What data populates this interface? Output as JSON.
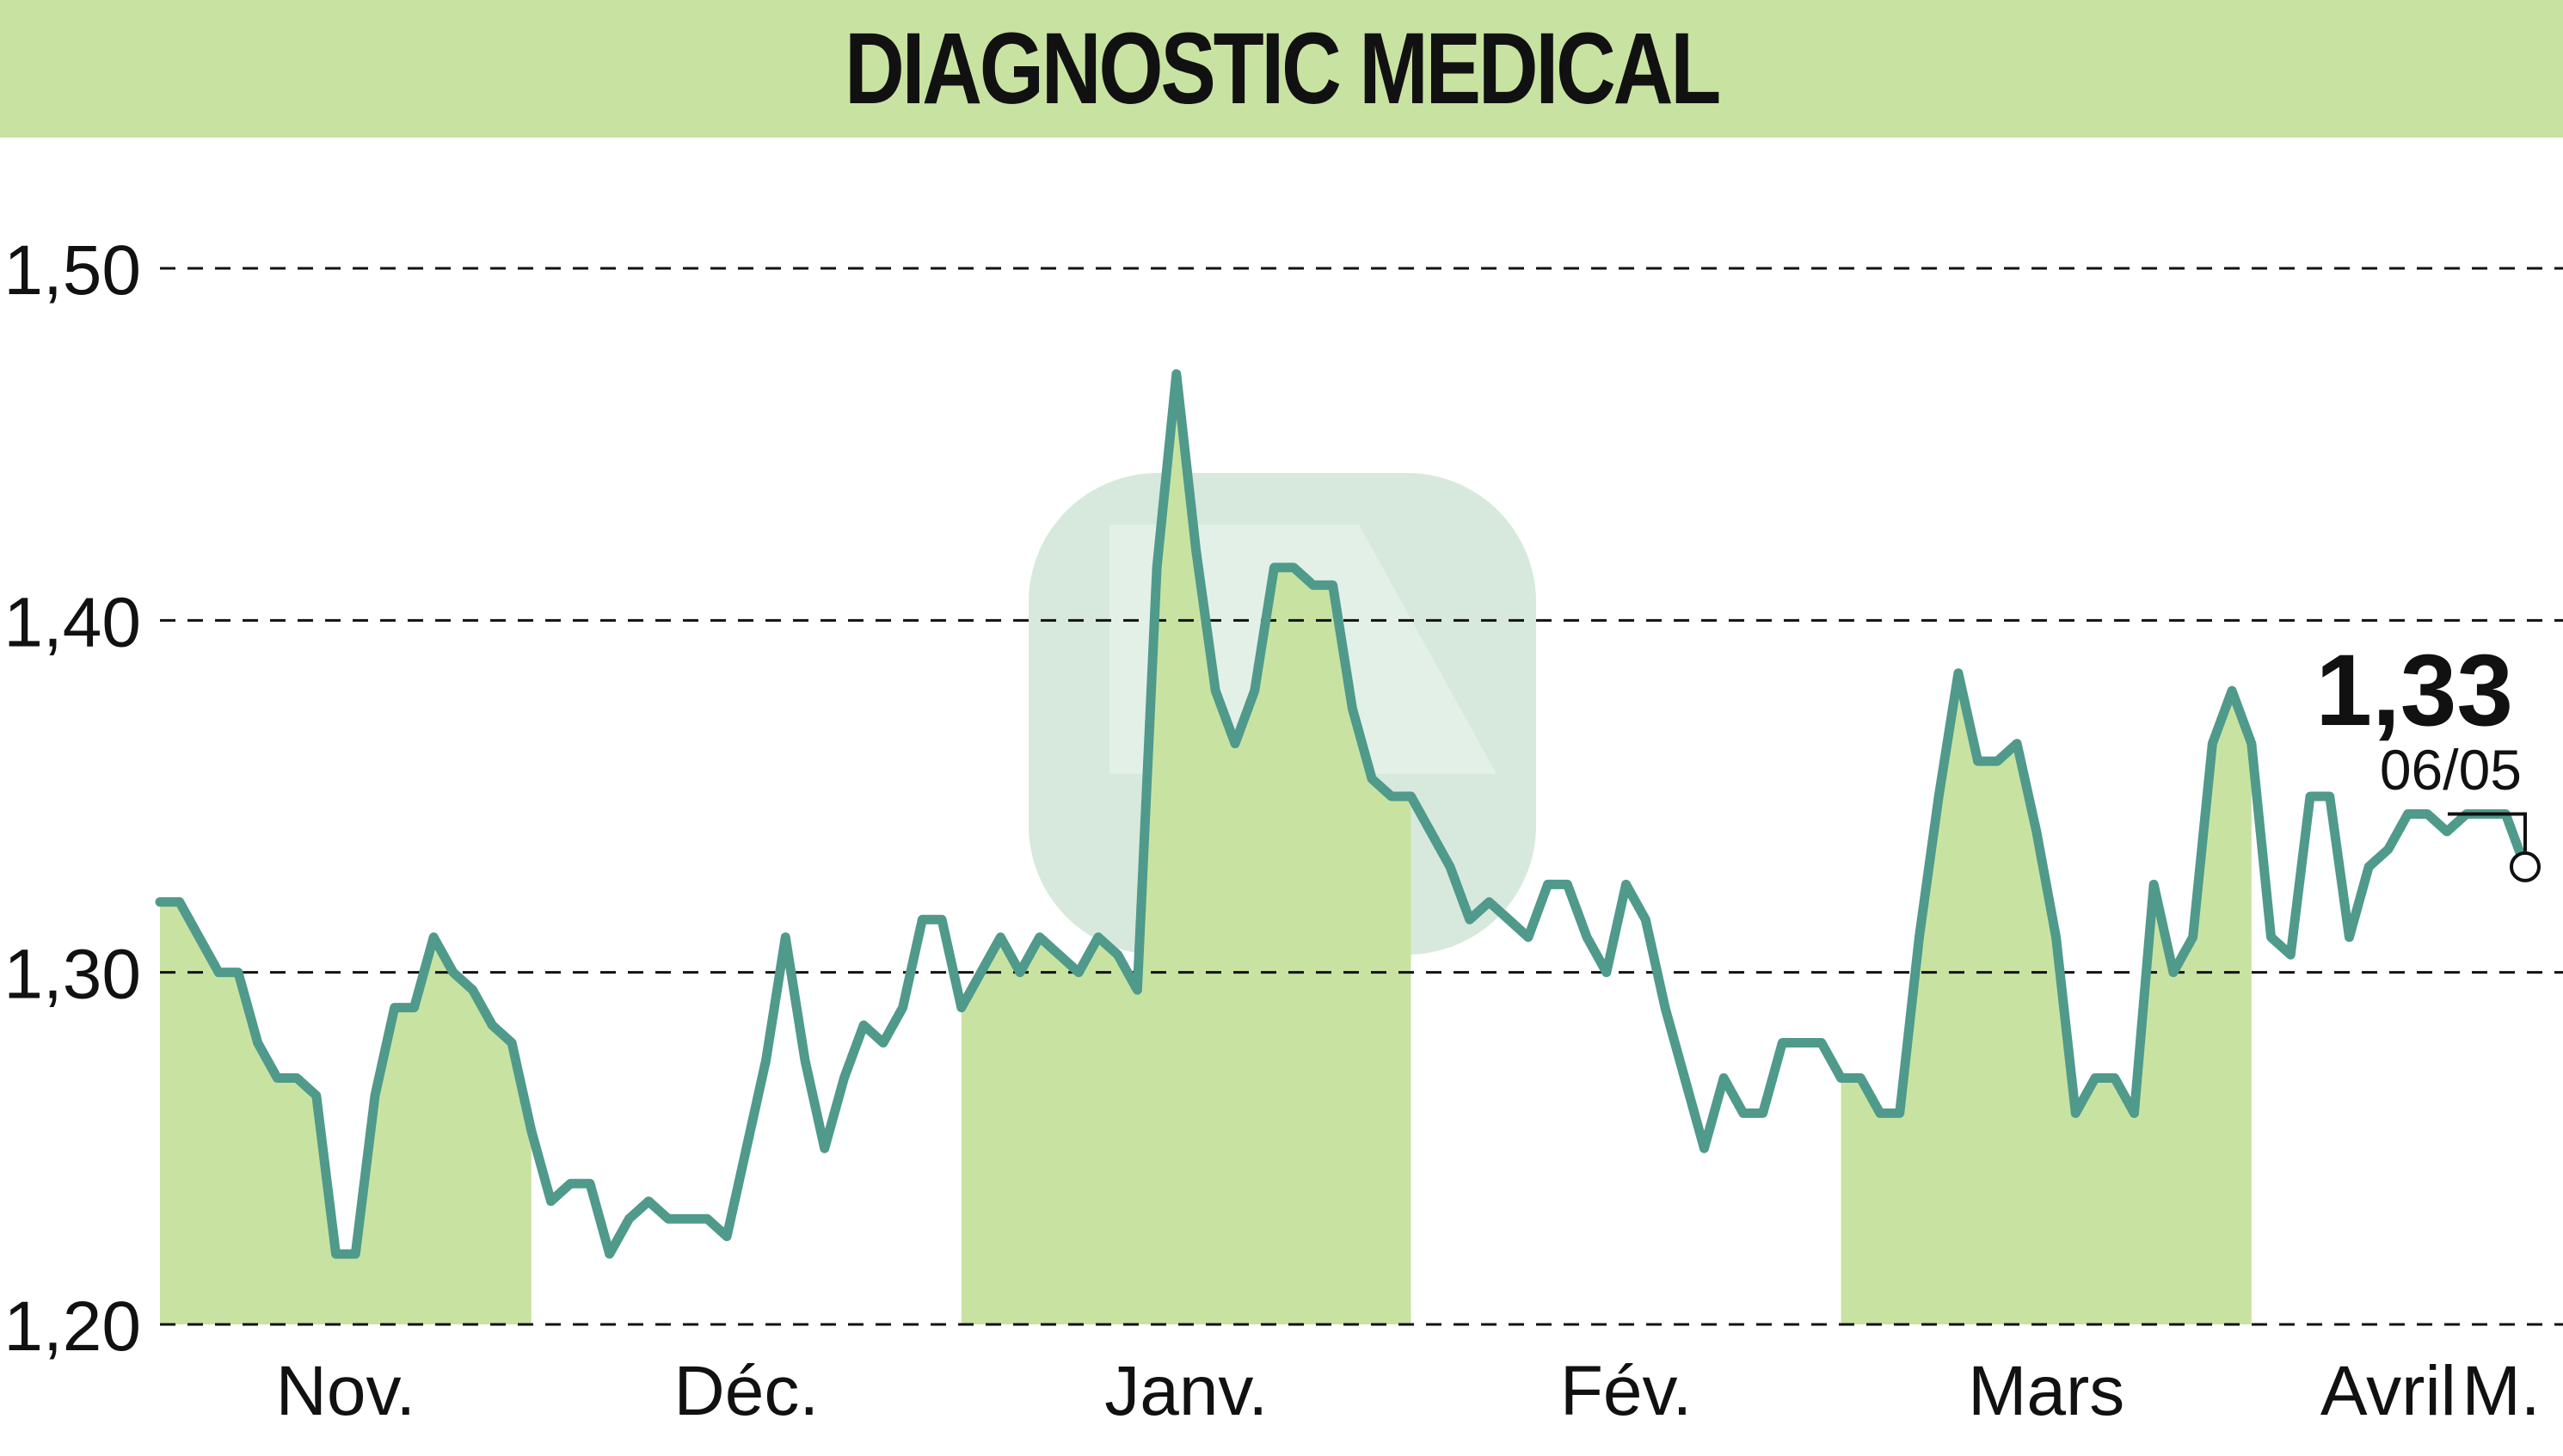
{
  "title": "DIAGNOSTIC MEDICAL",
  "colors": {
    "title_band": "#c8e3a1",
    "line": "#4f9a8b",
    "fill": "#c8e3a1",
    "grid": "#111111",
    "watermark": "#cfe5d6"
  },
  "chart_data": {
    "type": "line",
    "title": "DIAGNOSTIC MEDICAL",
    "xlabel": "",
    "ylabel": "",
    "ylim": [
      1.2,
      1.5
    ],
    "yticks": [
      "1,50",
      "1,40",
      "1,30",
      "1,20"
    ],
    "ytick_values": [
      1.5,
      1.4,
      1.3,
      1.2
    ],
    "grid": true,
    "months": [
      "Nov.",
      "Déc.",
      "Janv.",
      "Fév.",
      "Mars",
      "Avril",
      "M."
    ],
    "last_value": "1,33",
    "last_date": "06/05",
    "shaded_months": [
      "Nov.",
      "Janv.",
      "Mars",
      "M."
    ],
    "series": [
      {
        "values": [
          1.32,
          1.32,
          1.31,
          1.3,
          1.3,
          1.28,
          1.27,
          1.27,
          1.265,
          1.22,
          1.22,
          1.265,
          1.29,
          1.29,
          1.31,
          1.3,
          1.295,
          1.285,
          1.28,
          1.255,
          1.235,
          1.24,
          1.24,
          1.22,
          1.23,
          1.235,
          1.23,
          1.23,
          1.23,
          1.225,
          1.25,
          1.275,
          1.31,
          1.275,
          1.25,
          1.27,
          1.285,
          1.28,
          1.29,
          1.315,
          1.315,
          1.29,
          1.3,
          1.31,
          1.3,
          1.31,
          1.305,
          1.3,
          1.31,
          1.305,
          1.295,
          1.415,
          1.47,
          1.42,
          1.38,
          1.365,
          1.38,
          1.415,
          1.415,
          1.41,
          1.41,
          1.375,
          1.355,
          1.35,
          1.35,
          1.34,
          1.33,
          1.315,
          1.32,
          1.315,
          1.31,
          1.325,
          1.325,
          1.31,
          1.3,
          1.325,
          1.315,
          1.29,
          1.27,
          1.25,
          1.27,
          1.26,
          1.26,
          1.28,
          1.28,
          1.28,
          1.27,
          1.27,
          1.26,
          1.26,
          1.31,
          1.35,
          1.385,
          1.36,
          1.36,
          1.365,
          1.34,
          1.31,
          1.26,
          1.27,
          1.27,
          1.26,
          1.325,
          1.3,
          1.31,
          1.365,
          1.38,
          1.365,
          1.31,
          1.305,
          1.35,
          1.35,
          1.31,
          1.33,
          1.335,
          1.345,
          1.345,
          1.34,
          1.345,
          1.345,
          1.345,
          1.33
        ]
      }
    ]
  }
}
